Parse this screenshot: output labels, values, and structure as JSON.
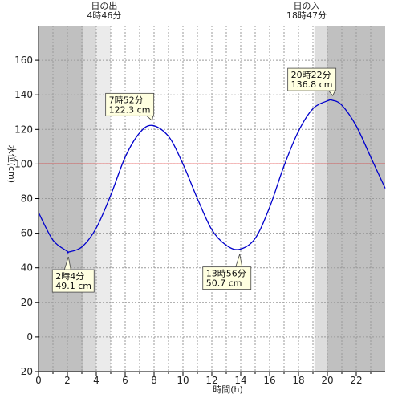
{
  "chart_data": {
    "type": "line",
    "xlabel": "時間(h)",
    "ylabel": "水位(cm)",
    "xlim": [
      0,
      24
    ],
    "ylim": [
      -20,
      180
    ],
    "xticks": [
      0,
      2,
      4,
      6,
      8,
      10,
      12,
      14,
      16,
      18,
      20,
      22
    ],
    "yticks": [
      -20,
      0,
      20,
      40,
      60,
      80,
      100,
      120,
      140,
      160
    ],
    "reference_line": {
      "value": 100,
      "color": "#e00000"
    },
    "series": [
      {
        "color": "#0000cc",
        "x": [
          0,
          1,
          2,
          2.07,
          3,
          4,
          5,
          6,
          7,
          7.87,
          9,
          10,
          11,
          12,
          13,
          13.93,
          15,
          16,
          17,
          18,
          19,
          20,
          20.37,
          21,
          22,
          23,
          24
        ],
        "y": [
          72,
          56,
          49.5,
          49.1,
          52,
          63,
          82,
          104,
          118,
          122.3,
          116,
          100,
          80,
          62,
          53,
          50.7,
          57,
          75,
          99,
          119,
          132,
          136.5,
          136.8,
          134,
          122,
          104,
          86
        ]
      }
    ],
    "annotations": [
      {
        "line1": "2時4分",
        "line2": "49.1 cm",
        "x": 2.07,
        "y": 49.1
      },
      {
        "line1": "7時52分",
        "line2": "122.3 cm",
        "x": 7.87,
        "y": 122.3
      },
      {
        "line1": "13時56分",
        "line2": "50.7 cm",
        "x": 13.93,
        "y": 50.7
      },
      {
        "line1": "20時22分",
        "line2": "136.8 cm",
        "x": 20.37,
        "y": 136.8
      }
    ],
    "sun_events": [
      {
        "label": "日の出",
        "time": "4時46分",
        "hour": 4.77
      },
      {
        "label": "日の入",
        "time": "18時47分",
        "hour": 18.78
      }
    ],
    "background_bands": [
      {
        "from": 0,
        "to": 3.1,
        "color": "#c0c0c0"
      },
      {
        "from": 3.1,
        "to": 4.0,
        "color": "#d8d8d8"
      },
      {
        "from": 4.0,
        "to": 5.0,
        "color": "#ebebeb"
      },
      {
        "from": 5.0,
        "to": 19.1,
        "color": "#ffffff"
      },
      {
        "from": 19.1,
        "to": 20.0,
        "color": "#dddddd"
      },
      {
        "from": 20.0,
        "to": 24,
        "color": "#c0c0c0"
      }
    ],
    "grid": true
  }
}
